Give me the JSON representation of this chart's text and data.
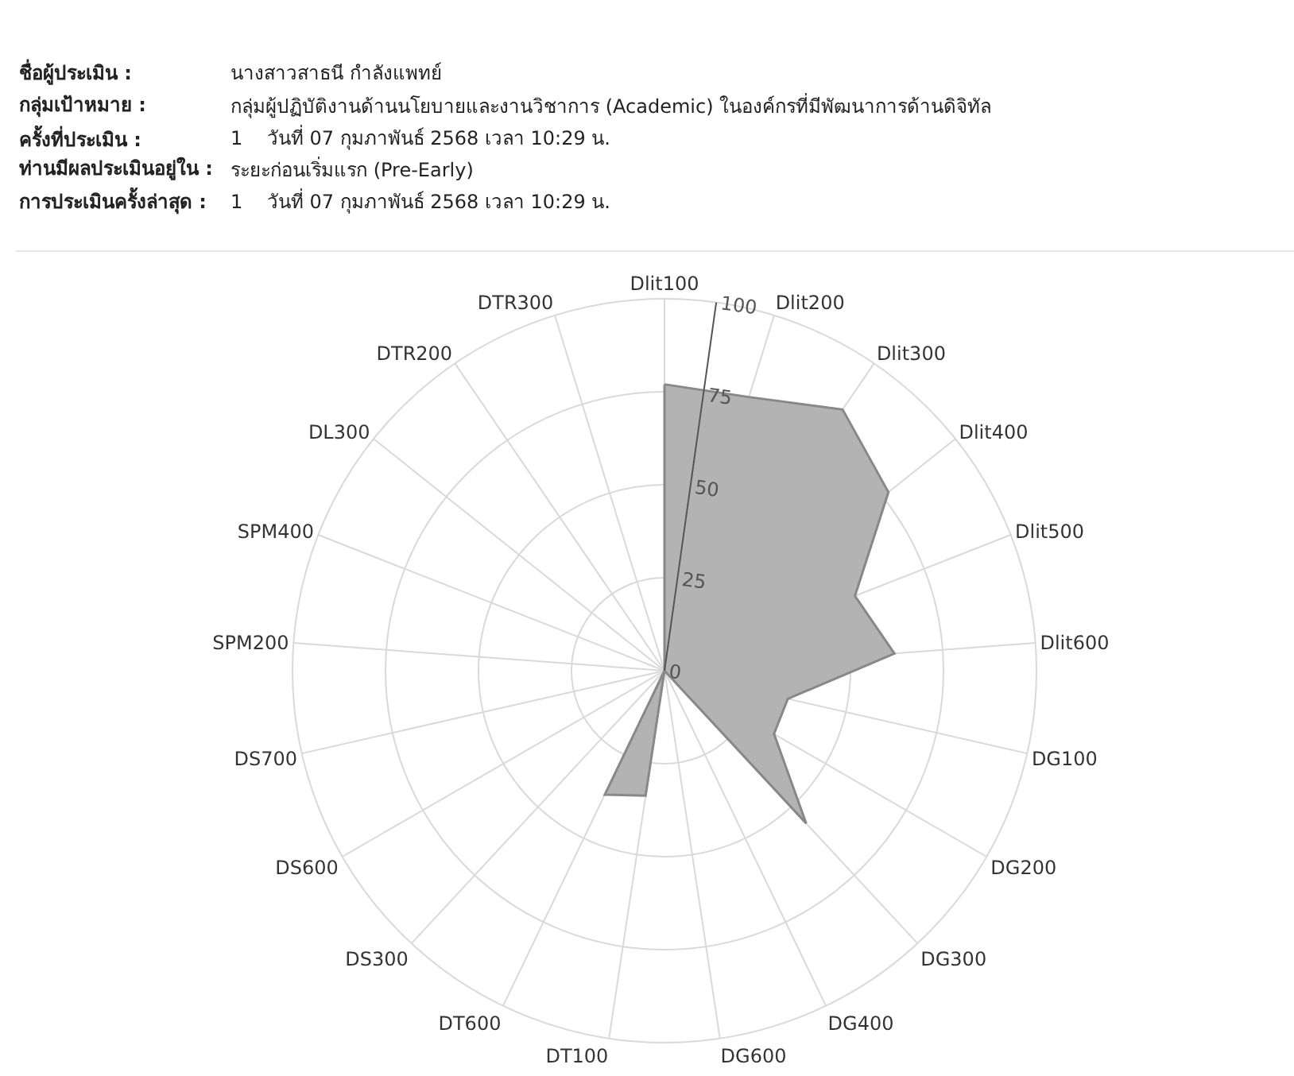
{
  "chart_data": {
    "type": "radar",
    "annotations": [
      "ชื่อผู้ประเมิน :",
      "นางสาวสาธนี กำลังแพทย์",
      "กลุ่มเป้าหมาย :",
      "กลุ่มผู้ปฏิบัติงานด้านนโยบายและงานวิชาการ (Academic) ในองค์กรที่มีพัฒนาการด้านดิจิทัล",
      "ครั้งที่ประเมิน :",
      "1    วันที่ 07 กุมภาพันธ์ 2568 เวลา 10:29 น.",
      "ท่านมีผลประเมินอยู่ใน :",
      "ระยะก่อนเริ่มแรก (Pre-Early)",
      "การประเมินครั้งล่าสุด :",
      "1    วันที่ 07 กุมภาพันธ์ 2568 เวลา 10:29 น."
    ],
    "categories": [
      "Dlit100",
      "Dlit200",
      "Dlit300",
      "Dlit400",
      "Dlit500",
      "Dlit600",
      "DG100",
      "DG200",
      "DG300",
      "DG400",
      "DG600",
      "DT100",
      "DT600",
      "DS300",
      "DS600",
      "DS700",
      "SPM200",
      "SPM400",
      "DL300",
      "DTR200",
      "DTR300"
    ],
    "series": [
      {
        "color": "#b3b3b3",
        "values": [
          77,
          77,
          85,
          77,
          55,
          62,
          34,
          34,
          56,
          0,
          0,
          34,
          37,
          0,
          0,
          0,
          0,
          0,
          0,
          0,
          0
        ]
      }
    ],
    "ylim": [
      0,
      100
    ],
    "yticks": [
      0,
      25,
      50,
      75,
      100
    ],
    "grid": true
  }
}
